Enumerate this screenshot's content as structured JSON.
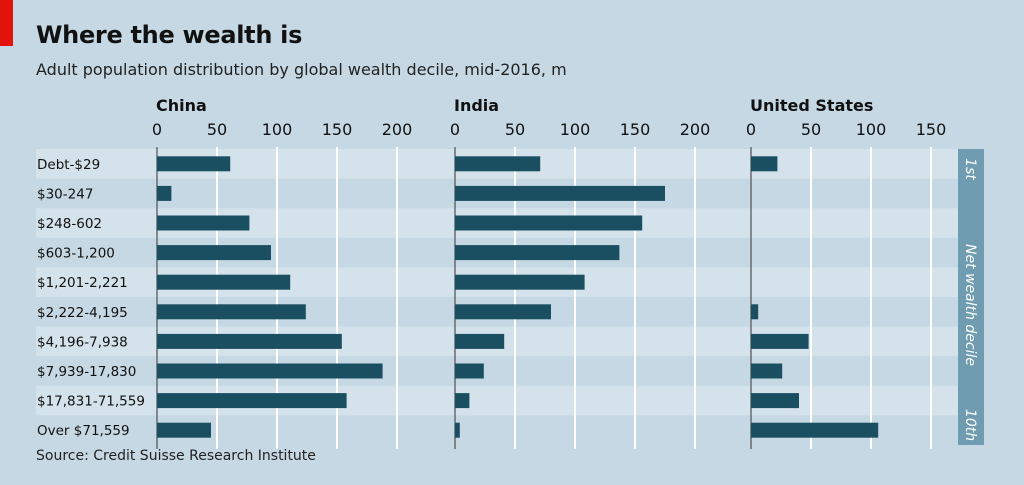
{
  "title": "Where the wealth is",
  "subtitle": "Adult population distribution by global wealth decile, mid-2016, m",
  "source": "Source: Credit Suisse Research Institute",
  "legend": {
    "axis_label": "Net wealth decile",
    "first": "1st",
    "last": "10th"
  },
  "colors": {
    "background": "#c5d8e3",
    "stripe": "#d3e2eb",
    "bar": "#1a4f61",
    "gridline": "#ffffff",
    "side_strip": "#6f9cb1",
    "brand_red": "#e3120b"
  },
  "chart_data": {
    "type": "bar",
    "orientation": "horizontal",
    "categories": [
      "Debt-$29",
      "$30-247",
      "$248-602",
      "$603-1,200",
      "$1,201-2,221",
      "$2,222-4,195",
      "$4,196-7,938",
      "$7,939-17,830",
      "$17,831-71,559",
      "Over $71,559"
    ],
    "panels": [
      {
        "name": "China",
        "xlim": [
          0,
          200
        ],
        "ticks": [
          0,
          50,
          100,
          150,
          200
        ],
        "values": [
          61,
          12,
          77,
          95,
          111,
          124,
          154,
          188,
          158,
          45
        ]
      },
      {
        "name": "India",
        "xlim": [
          0,
          200
        ],
        "ticks": [
          0,
          50,
          100,
          150,
          200
        ],
        "values": [
          71,
          175,
          156,
          137,
          108,
          80,
          41,
          24,
          12,
          4
        ]
      },
      {
        "name": "United States",
        "xlim": [
          0,
          150
        ],
        "ticks": [
          0,
          50,
          100,
          150
        ],
        "values": [
          22,
          0,
          0,
          0,
          0,
          6,
          48,
          26,
          40,
          106
        ]
      }
    ],
    "grid": true
  }
}
